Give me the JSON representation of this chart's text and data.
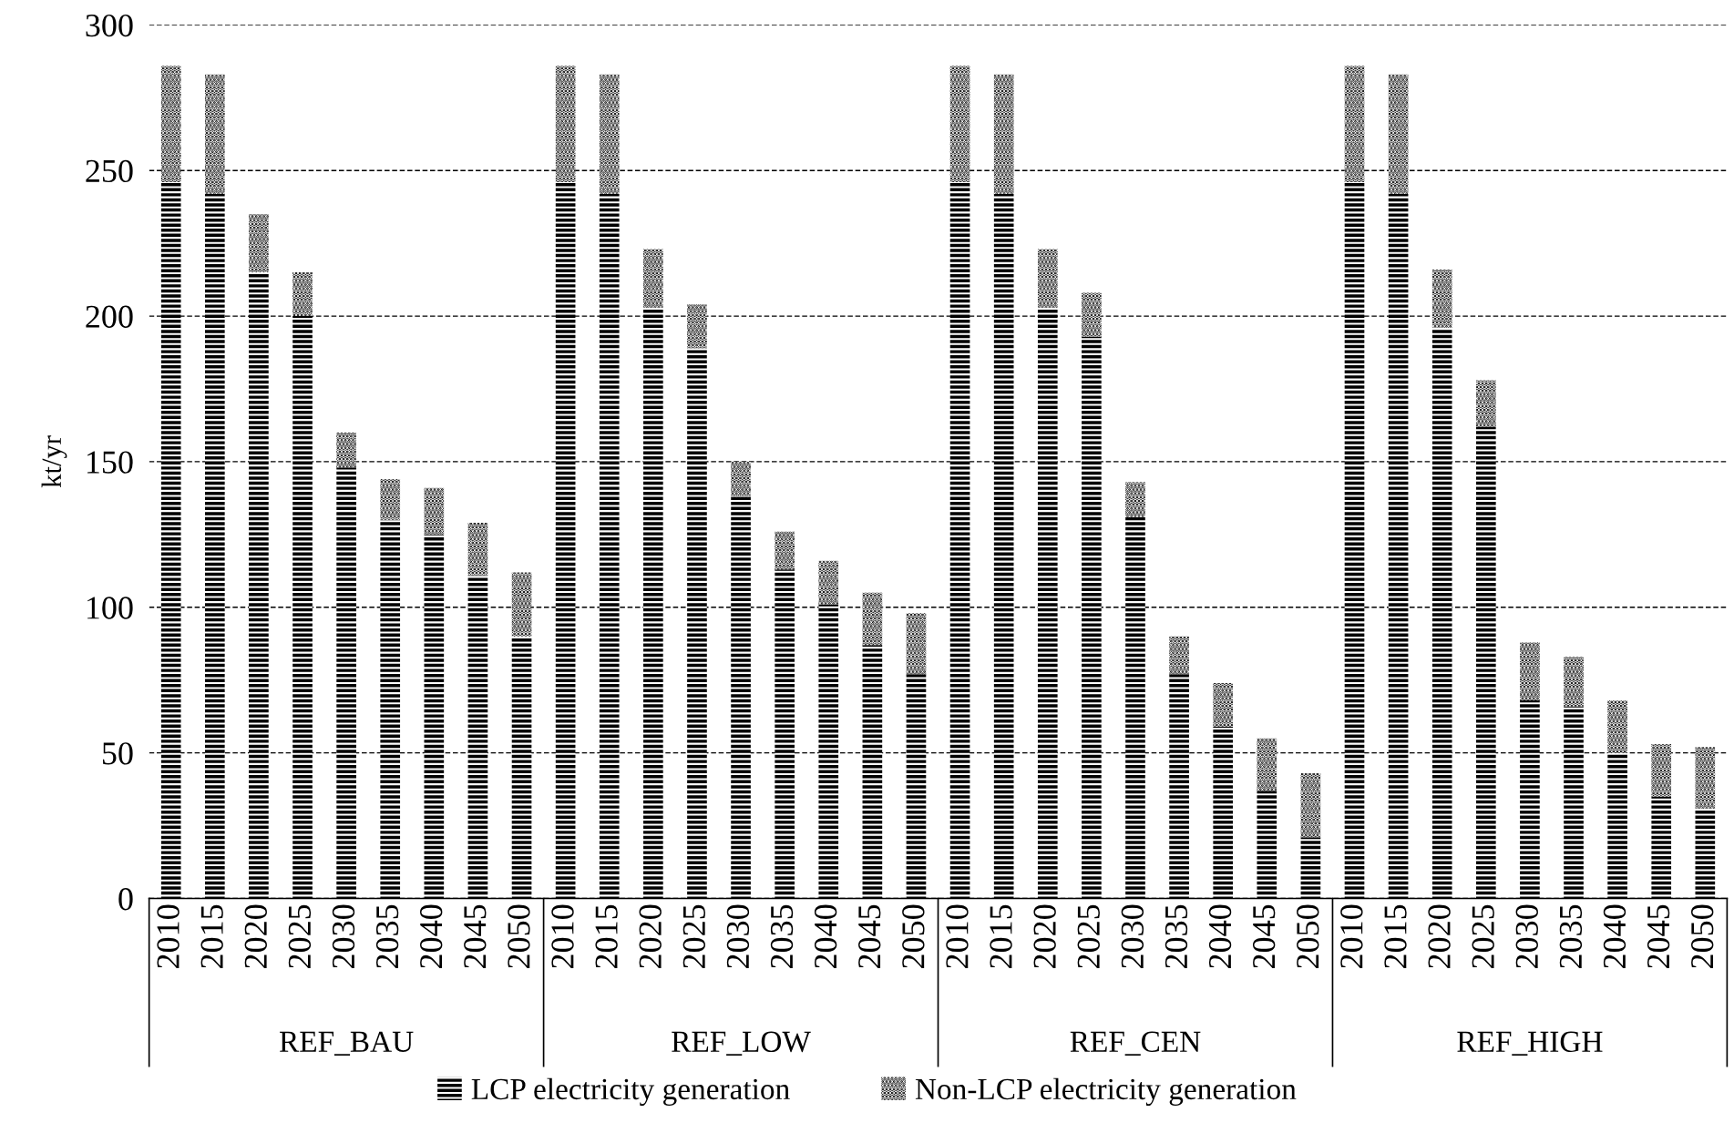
{
  "chart_data": {
    "type": "bar",
    "stacked": true,
    "ylabel": "kt/yr",
    "categories": [
      "2010",
      "2015",
      "2020",
      "2025",
      "2030",
      "2035",
      "2040",
      "2045",
      "2050",
      "2010",
      "2015",
      "2020",
      "2025",
      "2030",
      "2035",
      "2040",
      "2045",
      "2050",
      "2010",
      "2015",
      "2020",
      "2025",
      "2030",
      "2035",
      "2040",
      "2045",
      "2050",
      "2010",
      "2015",
      "2020",
      "2025",
      "2030",
      "2035",
      "2040",
      "2045",
      "2050"
    ],
    "series": [
      {
        "name": "LCP electricity generation",
        "color": "#000000",
        "values": [
          246,
          242,
          215,
          200,
          148,
          130,
          125,
          111,
          90,
          246,
          242,
          203,
          189,
          138,
          113,
          101,
          87,
          77,
          246,
          242,
          203,
          193,
          131,
          77,
          59,
          37,
          21,
          246,
          242,
          196,
          162,
          68,
          66,
          50,
          35,
          31
        ]
      },
      {
        "name": "Non-LCP electricity generation",
        "color": "#000000",
        "values": [
          40,
          41,
          20,
          15,
          12,
          14,
          16,
          18,
          22,
          40,
          41,
          20,
          15,
          12,
          13,
          15,
          18,
          21,
          40,
          41,
          20,
          15,
          12,
          13,
          15,
          18,
          22,
          40,
          41,
          20,
          16,
          20,
          17,
          18,
          18,
          21
        ]
      }
    ],
    "annotations": [
      "REF_BAU",
      "REF_LOW",
      "REF_CEN",
      "REF_HIGH"
    ],
    "ylim": [
      0,
      300
    ],
    "yticks": [
      0,
      50,
      100,
      150,
      200,
      250,
      300
    ],
    "grid": "y",
    "legend": "bottom"
  }
}
